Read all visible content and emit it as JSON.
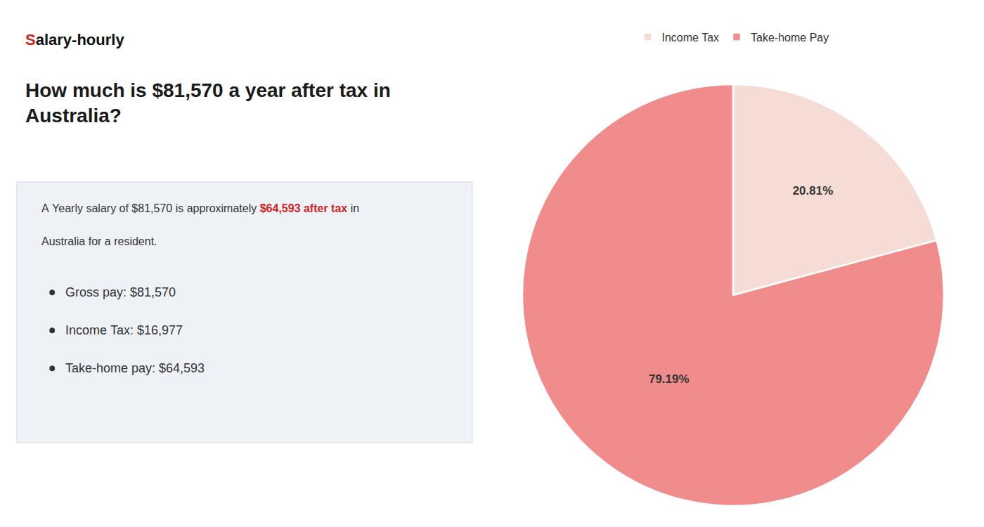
{
  "chart_data": {
    "type": "pie",
    "title": "How much is $81,570 a year after tax in\nAustralia?",
    "categories": [
      "Income Tax",
      "Take-home Pay"
    ],
    "values": [
      20.81,
      79.19
    ],
    "value_labels": [
      "20.81%",
      "79.19%"
    ],
    "colors": [
      "#f5ddd5",
      "#f08c8c"
    ],
    "data_labels": true,
    "legend": "top",
    "annotations": [
      {
        "parts": [
          {
            "text": "S",
            "color": "#cc2222"
          },
          {
            "text": "alary-hourly"
          }
        ]
      },
      {
        "parts": [
          {
            "text": "A Yearly salary of $81,570 is approximately "
          },
          {
            "text": "$64,593 after tax",
            "color": "#cc2222"
          },
          {
            "text": " in"
          }
        ]
      },
      {
        "parts": [
          {
            "text": "Australia for a resident."
          }
        ]
      },
      {
        "parts": [
          {
            "text": "Gross pay: $81,570"
          }
        ],
        "marker": "circle"
      },
      {
        "parts": [
          {
            "text": "Income Tax: $16,977"
          }
        ],
        "marker": "circle"
      },
      {
        "parts": [
          {
            "text": "Take-home pay: $64,593"
          }
        ],
        "marker": "circle"
      }
    ]
  }
}
